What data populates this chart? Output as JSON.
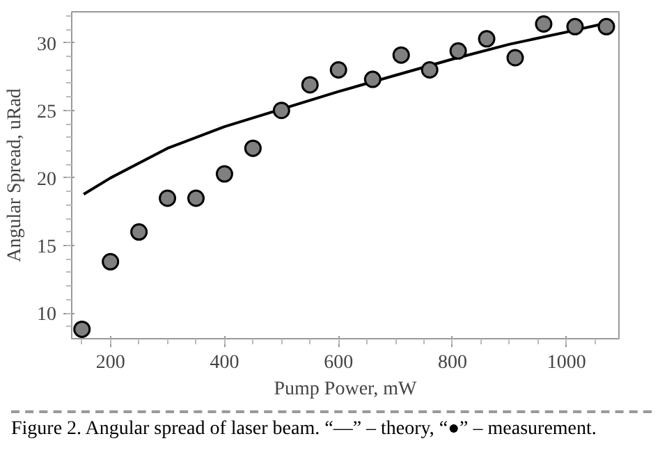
{
  "chart_data": {
    "type": "scatter",
    "xlabel": "Pump Power, mW",
    "ylabel": "Angular Spread, uRad",
    "xlim": [
      132,
      1092
    ],
    "ylim": [
      8.1,
      32.3
    ],
    "xticks": [
      200,
      400,
      600,
      800,
      1000
    ],
    "yticks": [
      10,
      15,
      20,
      25,
      30
    ],
    "grid": false,
    "series": [
      {
        "type": "line",
        "color": "#000000",
        "line_style": "solid",
        "x": [
          153,
          200,
          300,
          400,
          500,
          600,
          700,
          800,
          900,
          1000,
          1074
        ],
        "values": [
          18.8,
          20.0,
          22.2,
          23.8,
          25.1,
          26.4,
          27.6,
          28.8,
          29.9,
          30.8,
          31.5
        ]
      },
      {
        "color": "#808080",
        "marker": "circle",
        "x": [
          150,
          200,
          250,
          300,
          350,
          400,
          450,
          500,
          550,
          600,
          660,
          710,
          760,
          810,
          860,
          910,
          960,
          1015,
          1070
        ],
        "values": [
          8.8,
          13.8,
          16.0,
          18.5,
          18.5,
          20.3,
          22.2,
          25.0,
          26.9,
          28.0,
          27.3,
          29.1,
          28.0,
          29.4,
          30.3,
          28.9,
          31.4,
          31.2,
          31.2
        ]
      }
    ],
    "annotations": [
      "Figure 2. Angular spread of laser beam. “—” – theory, “●” – measurement."
    ]
  }
}
